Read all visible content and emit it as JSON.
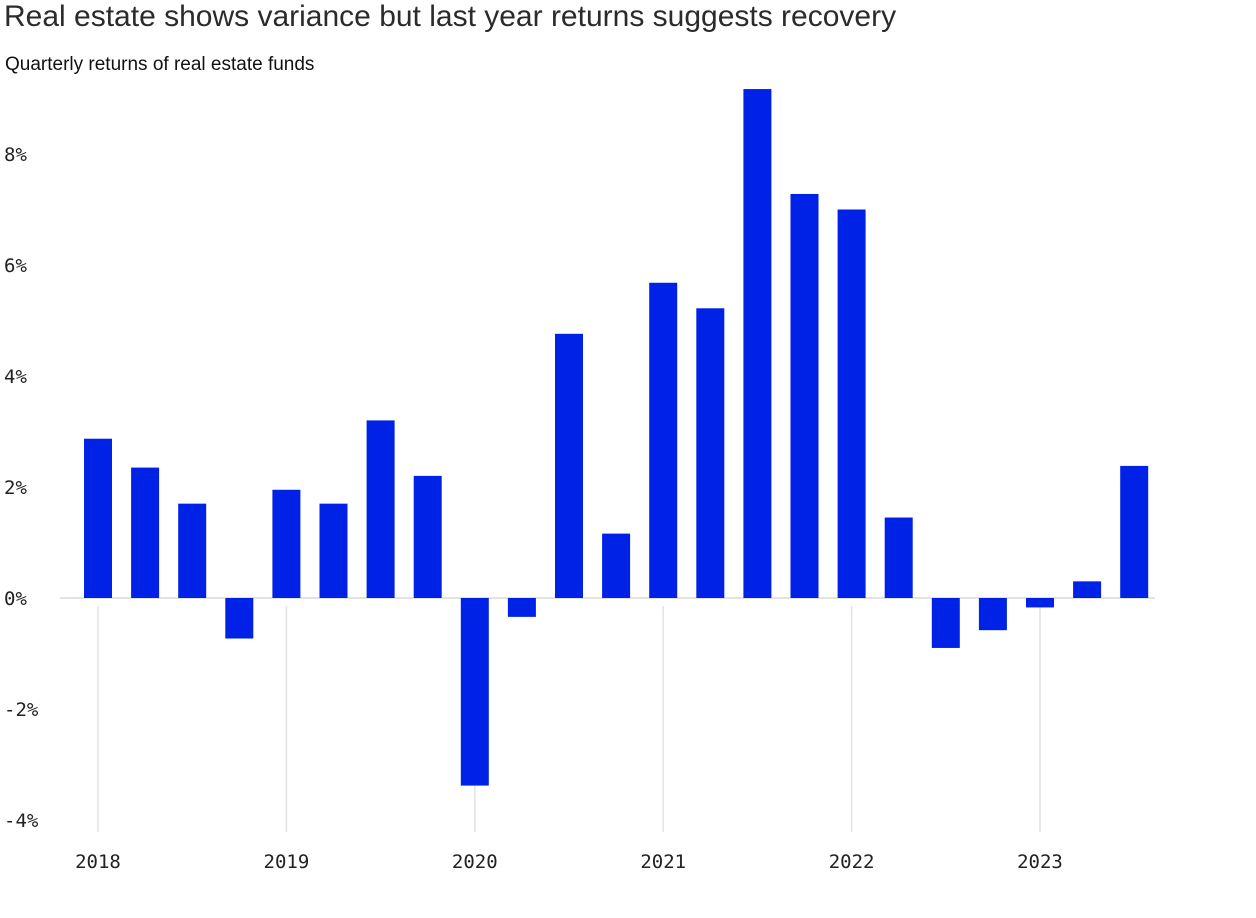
{
  "title": "Real estate shows variance but last year returns suggests recovery",
  "subtitle": "Quarterly returns of real estate funds",
  "colors": {
    "bar": "#0022e6",
    "grid": "#e2e2e2",
    "zero_line": "#d9d9d9"
  },
  "chart_data": {
    "type": "bar",
    "x": [
      "2018Q1",
      "2018Q2",
      "2018Q3",
      "2018Q4",
      "2019Q1",
      "2019Q2",
      "2019Q3",
      "2019Q4",
      "2020Q1",
      "2020Q2",
      "2020Q3",
      "2020Q4",
      "2021Q1",
      "2021Q2",
      "2021Q3",
      "2021Q4",
      "2022Q1",
      "2022Q2",
      "2022Q3",
      "2022Q4",
      "2023Q1",
      "2023Q2",
      "2023Q3"
    ],
    "values": [
      2.87,
      2.35,
      1.7,
      -0.73,
      1.95,
      1.7,
      3.2,
      2.2,
      -3.38,
      -0.34,
      4.76,
      1.16,
      5.68,
      5.22,
      9.17,
      7.28,
      7.0,
      1.45,
      -0.9,
      -0.58,
      -0.17,
      0.3,
      2.38
    ],
    "ylim": [
      -4,
      9.2
    ],
    "yticks": [
      8,
      6,
      4,
      2,
      0,
      -2,
      -4
    ],
    "ytick_labels": [
      "8%",
      "6%",
      "4%",
      "2%",
      "0%",
      "-2%",
      "-4%"
    ],
    "xtick_labels": [
      "2018",
      "2019",
      "2020",
      "2021",
      "2022",
      "2023"
    ],
    "xtick_index": [
      0,
      4,
      8,
      12,
      16,
      20
    ],
    "grid": "vertical at year starts",
    "legend": "none"
  }
}
